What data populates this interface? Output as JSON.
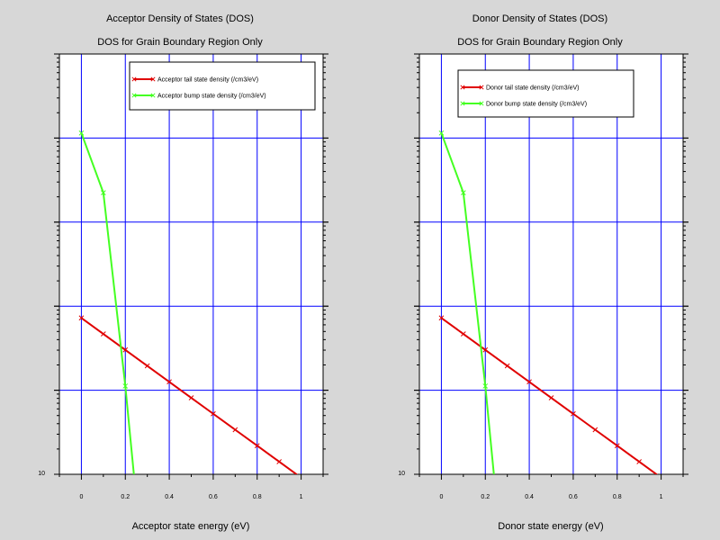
{
  "colors": {
    "background": "#d7d7d7",
    "plot_bg": "#ffffff",
    "grid": "#0000ff",
    "tail": "#e00000",
    "bump": "#44ff22"
  },
  "chart_data": [
    {
      "type": "line",
      "title": "Acceptor Density of States (DOS)",
      "subtitle": "DOS for Grain Boundary Region Only",
      "xlabel": "Acceptor state energy (eV)",
      "ylabel": "",
      "xlim": [
        -0.1,
        1.1
      ],
      "xticks": [
        0,
        0.2,
        0.4,
        0.6,
        0.8,
        1
      ],
      "xtick_labels": [
        "0",
        "0.2",
        "0.4",
        "0.6",
        "0.8",
        "1"
      ],
      "yscale": "log",
      "ylim_exp": [
        10,
        15
      ],
      "ytick_labels": [
        "10"
      ],
      "grid": true,
      "legend_position": "top-right",
      "series": [
        {
          "name": "Acceptor tail state density (/cm3/eV)",
          "color_key": "tail",
          "x": [
            0,
            0.1,
            0.2,
            0.3,
            0.4,
            0.5,
            0.6,
            0.7,
            0.8,
            0.9,
            1.0
          ],
          "y_exp": [
            11.86,
            11.67,
            11.48,
            11.29,
            11.1,
            10.91,
            10.72,
            10.53,
            10.34,
            10.15,
            9.96
          ]
        },
        {
          "name": "Acceptor bump state density (/cm3/eV)",
          "color_key": "bump",
          "x": [
            0,
            0.1,
            0.2,
            0.25
          ],
          "y_exp": [
            14.06,
            13.35,
            11.05,
            9.7
          ]
        }
      ]
    },
    {
      "type": "line",
      "title": "Donor Density of States (DOS)",
      "subtitle": "DOS for Grain Boundary Region Only",
      "xlabel": "Donor state energy (eV)",
      "ylabel": "",
      "xlim": [
        -0.1,
        1.1
      ],
      "xticks": [
        0,
        0.2,
        0.4,
        0.6,
        0.8,
        1
      ],
      "xtick_labels": [
        "0",
        "0.2",
        "0.4",
        "0.6",
        "0.8",
        "1"
      ],
      "yscale": "log",
      "ylim_exp": [
        10,
        15
      ],
      "ytick_labels": [
        "10"
      ],
      "grid": true,
      "legend_position": "top-right",
      "series": [
        {
          "name": "Donor tail state density (/cm3/eV)",
          "color_key": "tail",
          "x": [
            0,
            0.1,
            0.2,
            0.3,
            0.4,
            0.5,
            0.6,
            0.7,
            0.8,
            0.9,
            1.0
          ],
          "y_exp": [
            11.86,
            11.67,
            11.48,
            11.29,
            11.1,
            10.91,
            10.72,
            10.53,
            10.34,
            10.15,
            9.96
          ]
        },
        {
          "name": "Donor bump state density (/cm3/eV)",
          "color_key": "bump",
          "x": [
            0,
            0.1,
            0.2,
            0.25
          ],
          "y_exp": [
            14.06,
            13.35,
            11.05,
            9.7
          ]
        }
      ]
    }
  ]
}
